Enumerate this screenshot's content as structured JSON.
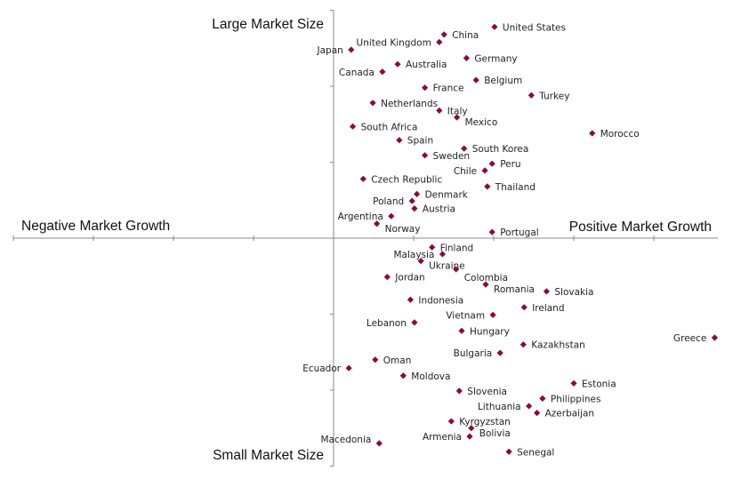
{
  "chart_data": {
    "type": "scatter",
    "title": "",
    "xlabel": "",
    "ylabel": "",
    "quadrant_labels": {
      "top": "Large Market Size",
      "bottom": "Small Market Size",
      "left": "Negative Market Growth",
      "right": "Positive Market Growth"
    },
    "xlim": [
      -4,
      4.8
    ],
    "ylim": [
      -3,
      3
    ],
    "grid": false,
    "legend": "none",
    "marker": "diamond",
    "marker_color": "#8b0a37",
    "points": [
      {
        "label": "United States",
        "x": 2.01,
        "y": 2.78
      },
      {
        "label": "China",
        "x": 1.38,
        "y": 2.68
      },
      {
        "label": "United Kingdom",
        "x": 1.32,
        "y": 2.58
      },
      {
        "label": "Japan",
        "x": 0.22,
        "y": 2.48
      },
      {
        "label": "Germany",
        "x": 1.66,
        "y": 2.37
      },
      {
        "label": "Australia",
        "x": 0.8,
        "y": 2.29
      },
      {
        "label": "Canada",
        "x": 0.61,
        "y": 2.19
      },
      {
        "label": "Belgium",
        "x": 1.78,
        "y": 2.08
      },
      {
        "label": "France",
        "x": 1.14,
        "y": 1.98
      },
      {
        "label": "Turkey",
        "x": 2.47,
        "y": 1.88
      },
      {
        "label": "Netherlands",
        "x": 0.49,
        "y": 1.78
      },
      {
        "label": "Italy",
        "x": 1.32,
        "y": 1.68
      },
      {
        "label": "Mexico",
        "x": 1.54,
        "y": 1.59
      },
      {
        "label": "South Africa",
        "x": 0.24,
        "y": 1.47
      },
      {
        "label": "Morocco",
        "x": 3.23,
        "y": 1.38
      },
      {
        "label": "Spain",
        "x": 0.82,
        "y": 1.29
      },
      {
        "label": "South Korea",
        "x": 1.63,
        "y": 1.18
      },
      {
        "label": "Sweden",
        "x": 1.14,
        "y": 1.09
      },
      {
        "label": "Peru",
        "x": 1.98,
        "y": 0.98
      },
      {
        "label": "Chile",
        "x": 1.89,
        "y": 0.89
      },
      {
        "label": "Czech Republic",
        "x": 0.37,
        "y": 0.78
      },
      {
        "label": "Thailand",
        "x": 1.92,
        "y": 0.68
      },
      {
        "label": "Denmark",
        "x": 1.04,
        "y": 0.58
      },
      {
        "label": "Poland",
        "x": 0.98,
        "y": 0.49
      },
      {
        "label": "Austria",
        "x": 1.01,
        "y": 0.39
      },
      {
        "label": "Argentina",
        "x": 0.72,
        "y": 0.29
      },
      {
        "label": "Norway",
        "x": 0.54,
        "y": 0.19
      },
      {
        "label": "Portugal",
        "x": 1.98,
        "y": 0.08
      },
      {
        "label": "Finland",
        "x": 1.23,
        "y": -0.12
      },
      {
        "label": "Malaysia",
        "x": 1.36,
        "y": -0.21
      },
      {
        "label": "Ukraine",
        "x": 1.09,
        "y": -0.3
      },
      {
        "label": "Colombia",
        "x": 1.53,
        "y": -0.41
      },
      {
        "label": "Jordan",
        "x": 0.67,
        "y": -0.51
      },
      {
        "label": "Romania",
        "x": 1.9,
        "y": -0.61
      },
      {
        "label": "Slovakia",
        "x": 2.66,
        "y": -0.7
      },
      {
        "label": "Indonesia",
        "x": 0.96,
        "y": -0.81
      },
      {
        "label": "Ireland",
        "x": 2.38,
        "y": -0.91
      },
      {
        "label": "Vietnam",
        "x": 1.99,
        "y": -1.01
      },
      {
        "label": "Lebanon",
        "x": 1.01,
        "y": -1.11
      },
      {
        "label": "Hungary",
        "x": 1.6,
        "y": -1.22
      },
      {
        "label": "Greece",
        "x": 4.76,
        "y": -1.31,
        "label_side": "left"
      },
      {
        "label": "Kazakhstan",
        "x": 2.37,
        "y": -1.4
      },
      {
        "label": "Bulgaria",
        "x": 2.08,
        "y": -1.51
      },
      {
        "label": "Oman",
        "x": 0.52,
        "y": -1.6
      },
      {
        "label": "Ecuador",
        "x": 0.19,
        "y": -1.71
      },
      {
        "label": "Moldova",
        "x": 0.87,
        "y": -1.81
      },
      {
        "label": "Estonia",
        "x": 3.0,
        "y": -1.91
      },
      {
        "label": "Slovenia",
        "x": 1.57,
        "y": -2.01
      },
      {
        "label": "Philippines",
        "x": 2.61,
        "y": -2.11
      },
      {
        "label": "Lithuania",
        "x": 2.44,
        "y": -2.21
      },
      {
        "label": "Azerbaijan",
        "x": 2.54,
        "y": -2.3
      },
      {
        "label": "Kyrgyzstan",
        "x": 1.47,
        "y": -2.41
      },
      {
        "label": "Bolivia",
        "x": 1.72,
        "y": -2.5
      },
      {
        "label": "Armenia",
        "x": 1.7,
        "y": -2.61
      },
      {
        "label": "Macedonia",
        "x": 0.57,
        "y": -2.7
      },
      {
        "label": "Senegal",
        "x": 2.19,
        "y": -2.81
      }
    ]
  }
}
